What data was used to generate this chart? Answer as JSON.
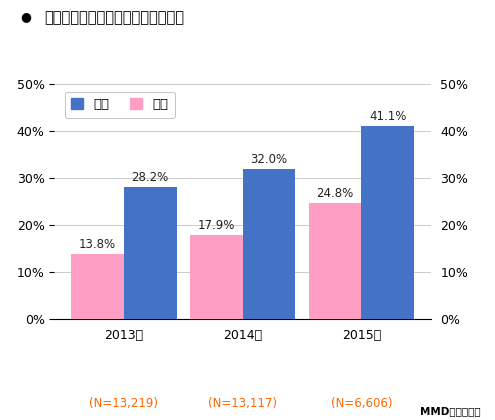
{
  "title": "タブレット端末の所有率（男女別）",
  "years": [
    "2013年",
    "2014年",
    "2015年"
  ],
  "n_labels": [
    "(N=13,219)",
    "(N=13,117)",
    "(N=6,606)"
  ],
  "male_values": [
    28.2,
    32.0,
    41.1
  ],
  "female_values": [
    13.8,
    17.9,
    24.8
  ],
  "male_color": "#4472C4",
  "female_color": "#FF9EC4",
  "male_label": "男性",
  "female_label": "女性",
  "ylim": [
    0,
    50
  ],
  "yticks": [
    0,
    10,
    20,
    30,
    40,
    50
  ],
  "ytick_labels": [
    "0%",
    "10%",
    "20%",
    "30%",
    "40%",
    "50%"
  ],
  "credit": "MMD研究所調べ",
  "bar_width": 0.32,
  "group_positions": [
    0.0,
    1.0,
    2.0
  ],
  "group_scale": 0.72,
  "background_color": "#ffffff",
  "grid_color": "#cccccc",
  "title_fontsize": 10.5,
  "legend_fontsize": 9.5,
  "tick_fontsize": 9,
  "value_fontsize": 8.5,
  "n_label_color": "#FF6600",
  "value_label_color": "#222222",
  "male_value_label_color": "#222222"
}
